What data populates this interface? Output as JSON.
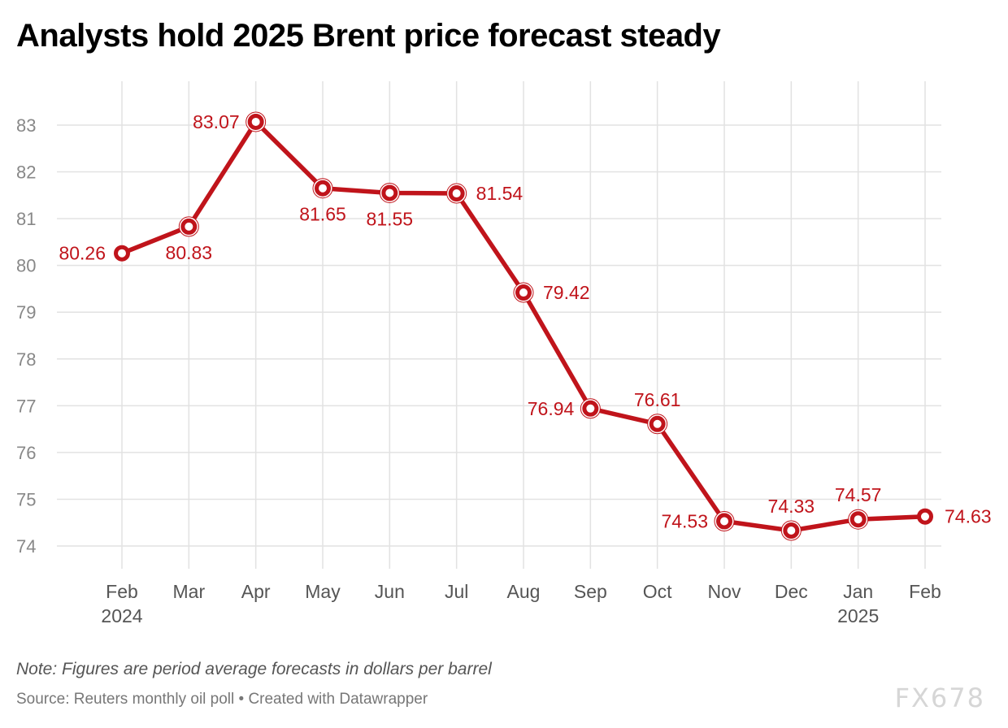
{
  "title": "Analysts hold 2025 Brent price forecast steady",
  "note": "Note: Figures are period average forecasts in dollars per barrel",
  "source": "Source: Reuters monthly oil poll • Created with Datawrapper",
  "watermark": "FX678",
  "colors": {
    "line": "#c0141b",
    "grid": "#e2e2e2",
    "tick": "#888888",
    "label": "#c0141b"
  },
  "chart_data": {
    "type": "line",
    "title": "Analysts hold 2025 Brent price forecast steady",
    "x": [
      "Feb 2024",
      "Mar",
      "Apr",
      "May",
      "Jun",
      "Jul",
      "Aug",
      "Sep",
      "Oct",
      "Nov",
      "Dec",
      "Jan 2025",
      "Feb"
    ],
    "x_tick_labels": [
      {
        "label": "Feb",
        "year": "2024"
      },
      {
        "label": "Mar"
      },
      {
        "label": "Apr"
      },
      {
        "label": "May"
      },
      {
        "label": "Jun"
      },
      {
        "label": "Jul"
      },
      {
        "label": "Aug"
      },
      {
        "label": "Sep"
      },
      {
        "label": "Oct"
      },
      {
        "label": "Nov"
      },
      {
        "label": "Dec"
      },
      {
        "label": "Jan",
        "year": "2025"
      },
      {
        "label": "Feb"
      }
    ],
    "series": [
      {
        "values": [
          80.26,
          80.83,
          83.07,
          81.65,
          81.55,
          81.54,
          79.42,
          76.94,
          76.61,
          74.53,
          74.33,
          74.57,
          74.63
        ]
      }
    ],
    "data_labels": [
      "80.26",
      "80.83",
      "83.07",
      "81.65",
      "81.55",
      "81.54",
      "79.42",
      "76.94",
      "76.61",
      "74.53",
      "74.33",
      "74.57",
      "74.63"
    ],
    "label_placement": [
      "left",
      "below",
      "left",
      "below",
      "below",
      "right",
      "right",
      "left",
      "above",
      "left",
      "above",
      "above",
      "right"
    ],
    "y_ticks": [
      74,
      75,
      76,
      77,
      78,
      79,
      80,
      81,
      82,
      83
    ],
    "ylim": [
      74,
      83
    ],
    "grid": true,
    "xlabel": "",
    "ylabel": ""
  }
}
